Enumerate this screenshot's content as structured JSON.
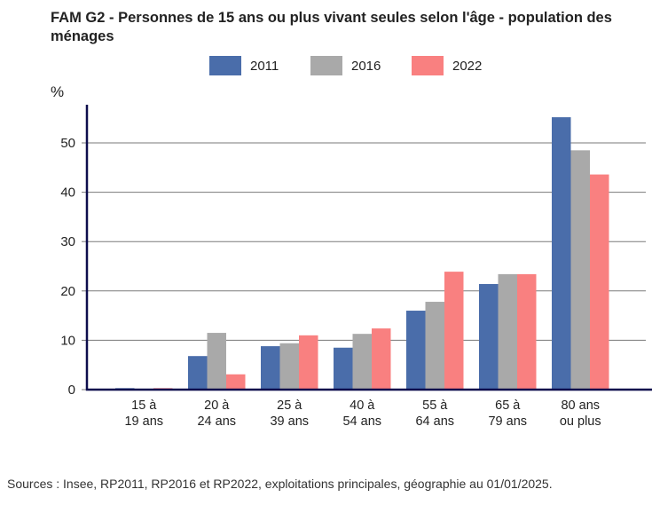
{
  "chart_data": {
    "type": "bar",
    "title": "FAM G2 - Personnes de 15 ans ou plus vivant seules selon l'âge - population des ménages",
    "ylabel": "%",
    "xlabel": "",
    "ylim": [
      0,
      57
    ],
    "yticks": [
      0,
      10,
      20,
      30,
      40,
      50
    ],
    "grid": true,
    "legend_position": "top-center",
    "categories": [
      [
        "15 à",
        "19 ans"
      ],
      [
        "20 à",
        "24 ans"
      ],
      [
        "25 à",
        "39 ans"
      ],
      [
        "40 à",
        "54 ans"
      ],
      [
        "55 à",
        "64 ans"
      ],
      [
        "65 à",
        "79 ans"
      ],
      [
        "80 ans",
        "ou plus"
      ]
    ],
    "series": [
      {
        "name": "2011",
        "color": "#4a6daa",
        "values": [
          0.3,
          6.8,
          8.8,
          8.5,
          16.0,
          21.4,
          55.2
        ]
      },
      {
        "name": "2016",
        "color": "#a9a9a9",
        "values": [
          0.1,
          11.5,
          9.4,
          11.3,
          17.8,
          23.4,
          48.5
        ]
      },
      {
        "name": "2022",
        "color": "#f98080",
        "values": [
          0.3,
          3.1,
          11.0,
          12.4,
          23.9,
          23.4,
          43.6
        ]
      }
    ],
    "source": "Sources : Insee, RP2011, RP2016 et RP2022, exploitations principales, géographie au 01/01/2025."
  }
}
